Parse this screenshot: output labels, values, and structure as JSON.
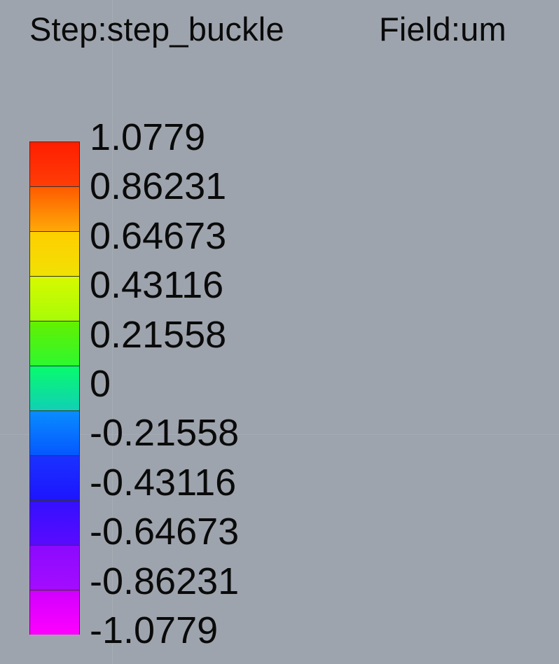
{
  "header": {
    "step_text": "Step:step_buckle",
    "field_text": "Field:um"
  },
  "legend": {
    "labels": [
      "1.0779",
      "0.86231",
      "0.64673",
      "0.43116",
      "0.21558",
      "0",
      "-0.21558",
      "-0.43116",
      "-0.64673",
      "-0.86231",
      "-1.0779"
    ],
    "bands": [
      {
        "top": "#ff1d00",
        "bottom": "#ff3e07"
      },
      {
        "top": "#ff5a00",
        "bottom": "#ffaa08"
      },
      {
        "top": "#ffce00",
        "bottom": "#f1e104"
      },
      {
        "top": "#d8f900",
        "bottom": "#a6fc07"
      },
      {
        "top": "#64f000",
        "bottom": "#2ef82f"
      },
      {
        "top": "#08fb6c",
        "bottom": "#10d0b6"
      },
      {
        "top": "#0a8dff",
        "bottom": "#0557ff"
      },
      {
        "top": "#1a32ff",
        "bottom": "#1d14ff"
      },
      {
        "top": "#3310ff",
        "bottom": "#5a0aff"
      },
      {
        "top": "#8b0aff",
        "bottom": "#a40cff"
      },
      {
        "top": "#d000ff",
        "bottom": "#ff00ff"
      }
    ]
  },
  "colors": {
    "background": "#9ea4ad",
    "text": "#0a0a0a",
    "band_border": "#333333"
  }
}
